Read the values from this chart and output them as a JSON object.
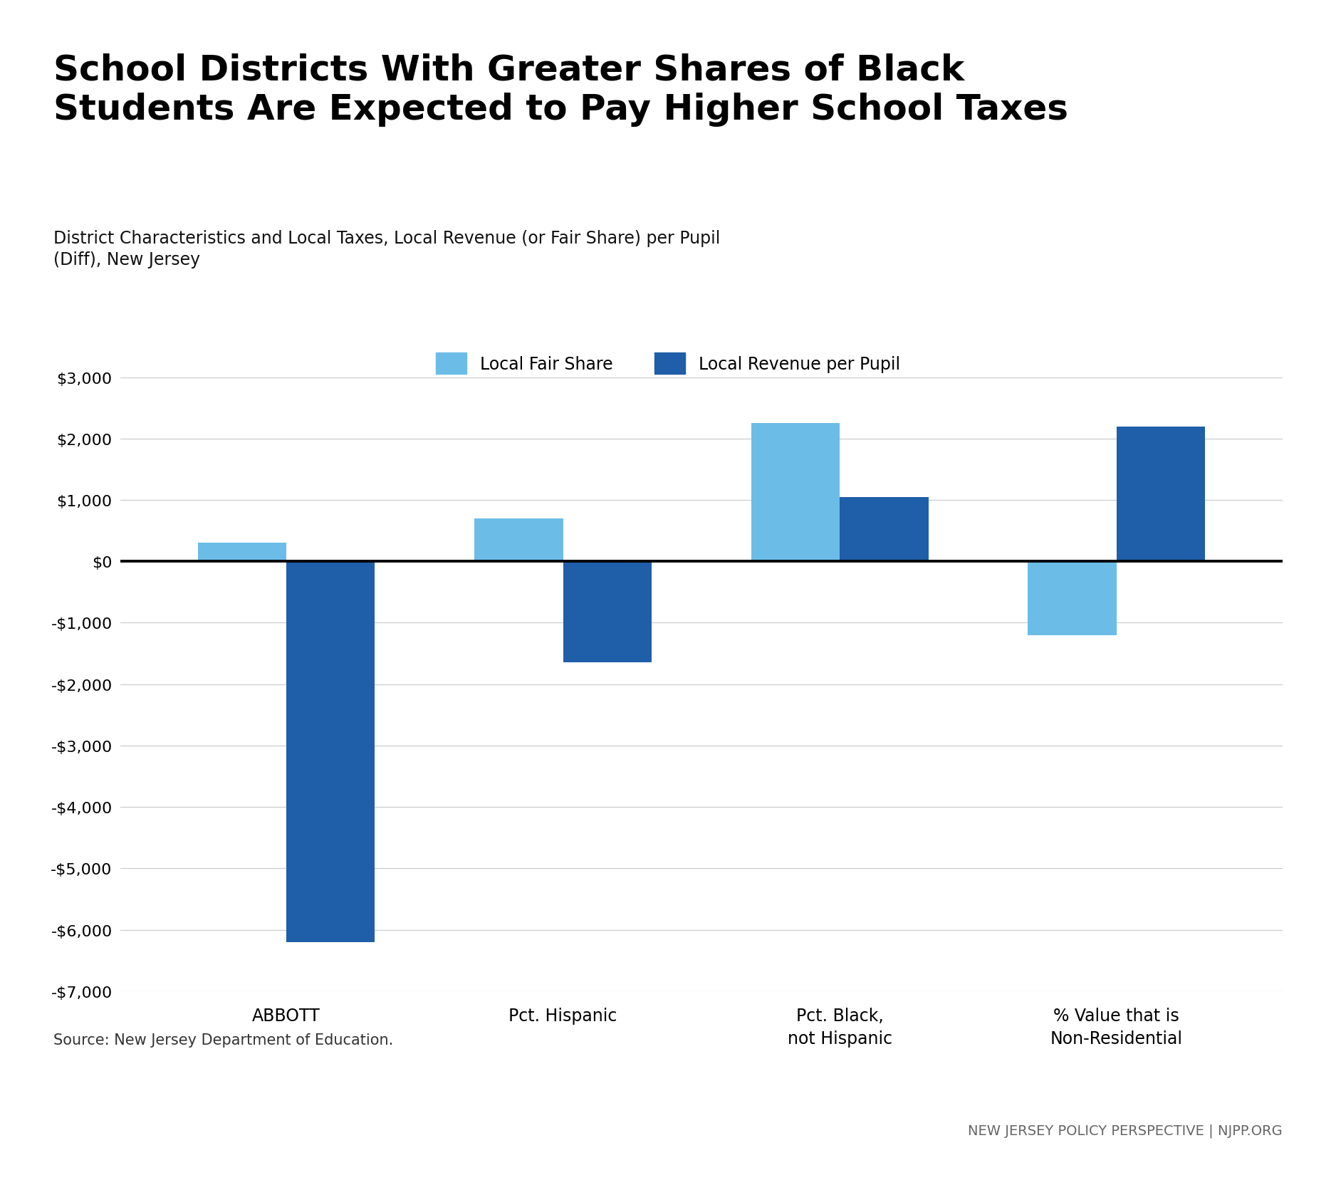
{
  "title": "School Districts With Greater Shares of Black\nStudents Are Expected to Pay Higher School Taxes",
  "subtitle": "District Characteristics and Local Taxes, Local Revenue (or Fair Share) per Pupil\n(Diff), New Jersey",
  "categories": [
    "ABBOTT",
    "Pct. Hispanic",
    "Pct. Black,\nnot Hispanic",
    "% Value that is\nNon-Residential"
  ],
  "local_fair_share": [
    300,
    700,
    2250,
    -1200
  ],
  "local_revenue_per_pupil": [
    -6200,
    -1650,
    1050,
    2200
  ],
  "color_fair_share": "#6BBDE8",
  "color_revenue": "#1F5EA8",
  "ylim": [
    -7000,
    3000
  ],
  "yticks": [
    -7000,
    -6000,
    -5000,
    -4000,
    -3000,
    -2000,
    -1000,
    0,
    1000,
    2000,
    3000
  ],
  "legend_fair_share": "Local Fair Share",
  "legend_revenue": "Local Revenue per Pupil",
  "source_text": "Source: New Jersey Department of Education.",
  "footer_text": "NEW JERSEY POLICY PERSPECTIVE | NJPP.ORG",
  "background_color": "#FFFFFF",
  "title_fontsize": 36,
  "subtitle_fontsize": 17,
  "tick_fontsize": 16,
  "legend_fontsize": 17,
  "source_fontsize": 15,
  "footer_fontsize": 14,
  "xtick_fontsize": 17
}
